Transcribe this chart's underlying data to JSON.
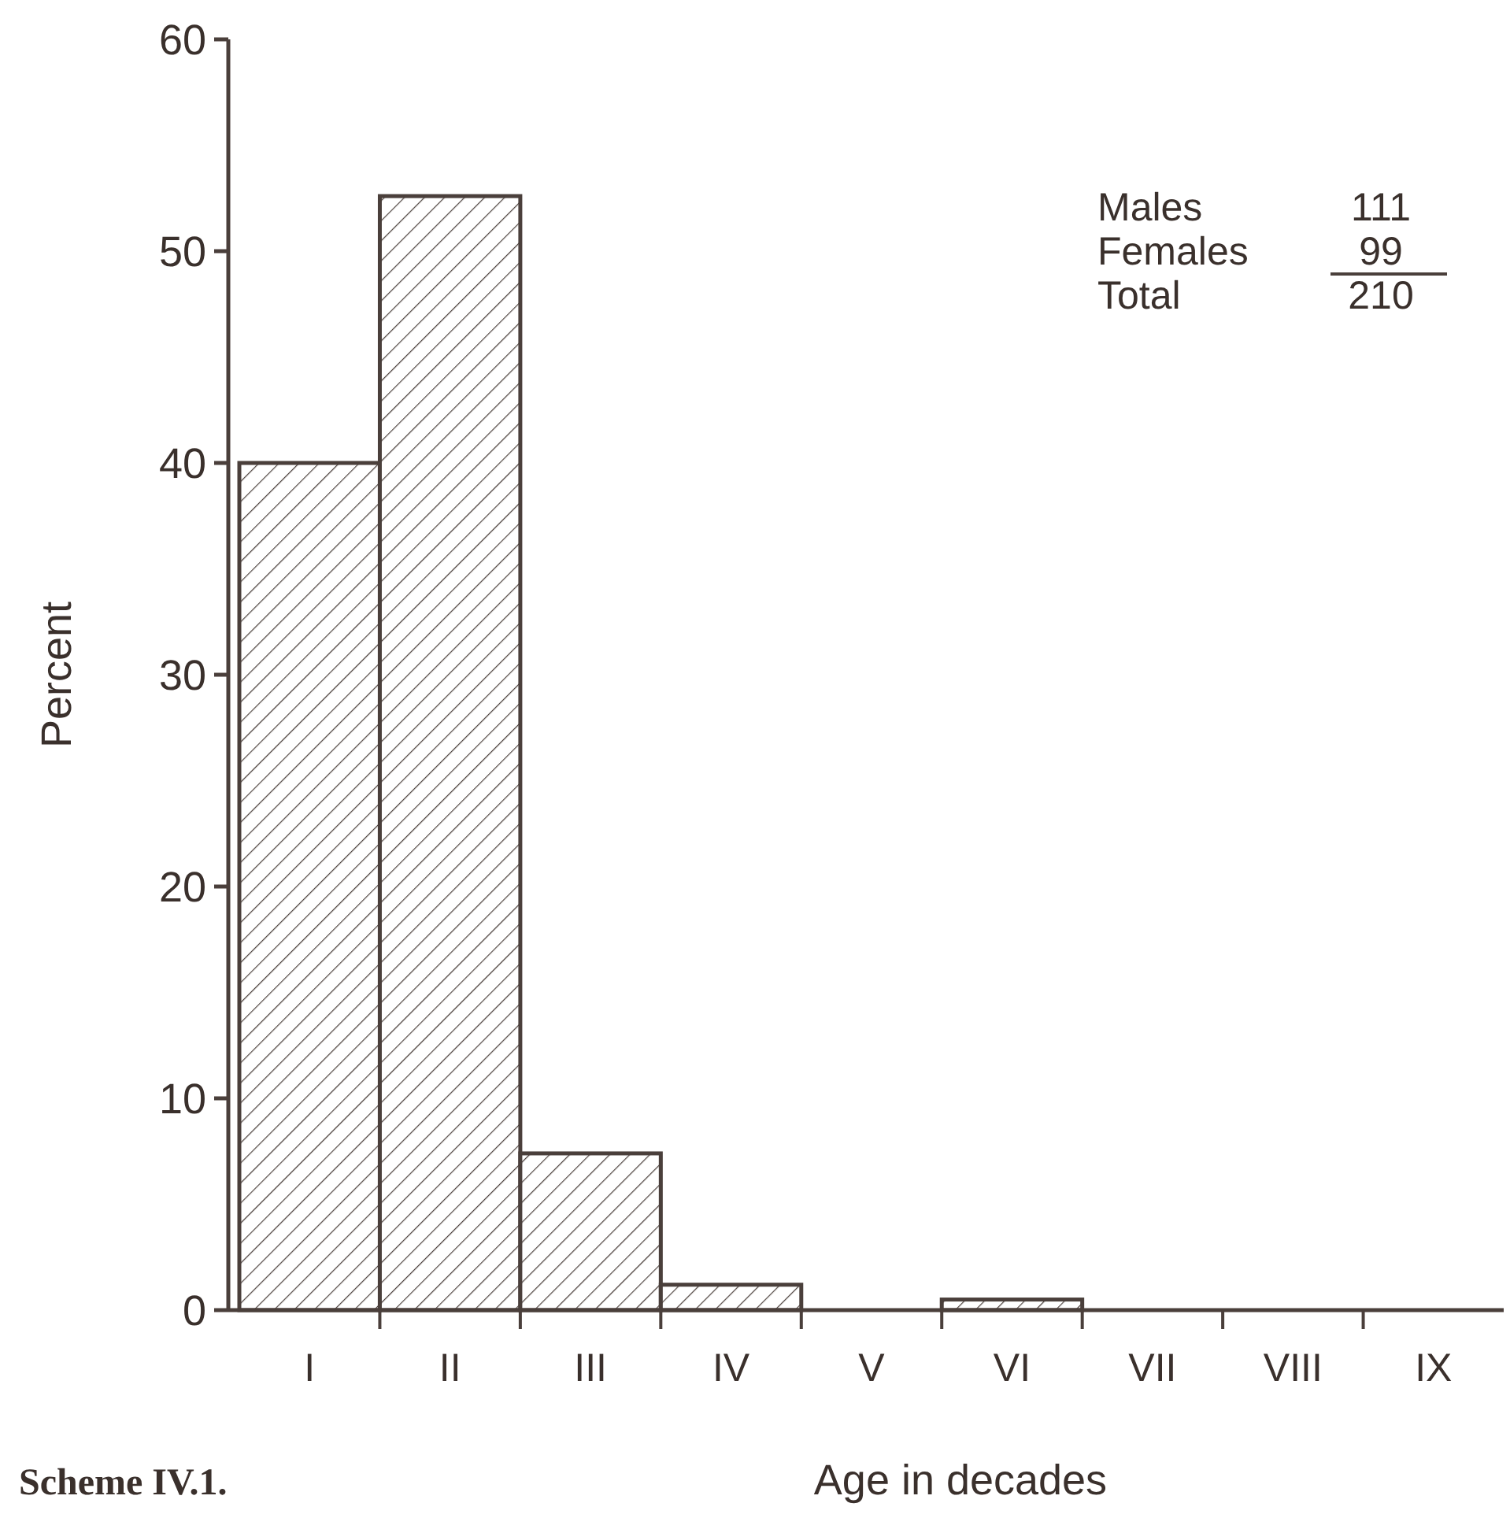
{
  "chart_data": {
    "type": "bar",
    "categories": [
      "I",
      "II",
      "III",
      "IV",
      "V",
      "VI",
      "VII",
      "VIII",
      "IX"
    ],
    "values": [
      40,
      52.6,
      7.4,
      1.2,
      0,
      0.5,
      0,
      0,
      0
    ],
    "color": "#4a3f3b",
    "ylim": [
      0,
      60
    ],
    "yticks": [
      0,
      10,
      20,
      30,
      40,
      50,
      60
    ],
    "xlabel": "Age in decades",
    "ylabel": "Percent",
    "annotations": [
      "Males 111",
      "Females 99",
      "Total 210",
      "Scheme IV.1."
    ],
    "grid": false
  }
}
